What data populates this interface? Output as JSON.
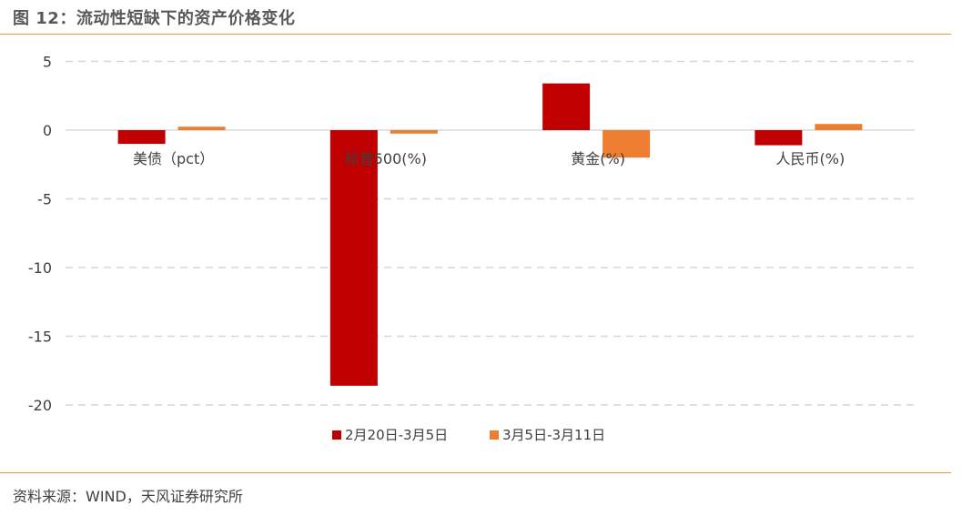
{
  "header": {
    "title": "图 12：流动性短缺下的资产价格变化"
  },
  "footer": {
    "source": "资料来源：WIND，天风证券研究所"
  },
  "colors": {
    "accent_rule": "#e39a3a",
    "series1": "#c00000",
    "series2": "#ed7d31",
    "grid": "#d9d4dc",
    "axis_zero": "#d9d9d9"
  },
  "chart_data": {
    "type": "bar",
    "title": "",
    "xlabel": "",
    "ylabel": "",
    "ylim": [
      -22,
      6
    ],
    "yticks": [
      5,
      0,
      -5,
      -10,
      -15,
      -20
    ],
    "ytick_labels": [
      "5",
      "0",
      "-5",
      "-10",
      "-15",
      "-20"
    ],
    "grid": true,
    "legend_position": "bottom-center",
    "categories": [
      "美债（pct）",
      "标普500(%)",
      "黄金(%)",
      "人民币(%)"
    ],
    "series": [
      {
        "name": "2月20日-3月5日",
        "values": [
          -1.0,
          -18.6,
          3.4,
          -1.1
        ]
      },
      {
        "name": "3月5日-3月11日",
        "values": [
          0.25,
          -0.25,
          -2.0,
          0.45
        ]
      }
    ]
  }
}
